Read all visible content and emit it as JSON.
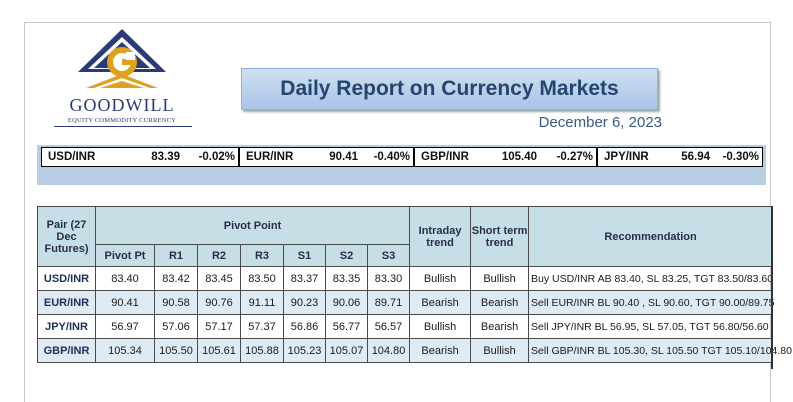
{
  "logo": {
    "name": "GOODWILL",
    "tagline": "EQUITY COMMODITY CURRENCY",
    "colors": {
      "navy": "#2b3a78",
      "gold": "#e0a020"
    }
  },
  "report": {
    "title": "Daily Report on Currency Markets",
    "date": "December 6, 2023"
  },
  "ticker": [
    {
      "pair": "USD/INR",
      "price": "83.39",
      "change": "-0.02%"
    },
    {
      "pair": "EUR/INR",
      "price": "90.41",
      "change": "-0.40%"
    },
    {
      "pair": "GBP/INR",
      "price": "105.40",
      "change": "-0.27%"
    },
    {
      "pair": "JPY/INR",
      "price": "56.94",
      "change": "-0.30%"
    }
  ],
  "table": {
    "headers": {
      "pair": "Pair (27 Dec Futures)",
      "pivot_group": "Pivot Point",
      "intraday": "Intraday trend",
      "short_term": "Short term trend",
      "recommendation": "Recommendation",
      "sub": [
        "Pivot Pt",
        "R1",
        "R2",
        "R3",
        "S1",
        "S2",
        "S3"
      ]
    },
    "rows": [
      {
        "pair": "USD/INR",
        "pivot": "83.40",
        "r1": "83.42",
        "r2": "83.45",
        "r3": "83.50",
        "s1": "83.37",
        "s2": "83.35",
        "s3": "83.30",
        "intraday": "Bullish",
        "short_term": "Bullish",
        "recommendation": "Buy USD/INR AB 83.40, SL 83.25, TGT 83.50/83.60"
      },
      {
        "pair": "EUR/INR",
        "pivot": "90.41",
        "r1": "90.58",
        "r2": "90.76",
        "r3": "91.11",
        "s1": "90.23",
        "s2": "90.06",
        "s3": "89.71",
        "intraday": "Bearish",
        "short_term": "Bearish",
        "recommendation": "Sell EUR/INR BL 90.40 , SL 90.60, TGT 90.00/89.75"
      },
      {
        "pair": "JPY/INR",
        "pivot": "56.97",
        "r1": "57.06",
        "r2": "57.17",
        "r3": "57.37",
        "s1": "56.86",
        "s2": "56.77",
        "s3": "56.57",
        "intraday": "Bullish",
        "short_term": "Bearish",
        "recommendation": "Sell JPY/INR BL 56.95, SL 57.05, TGT 56.80/56.60"
      },
      {
        "pair": "GBP/INR",
        "pivot": "105.34",
        "r1": "105.50",
        "r2": "105.61",
        "r3": "105.88",
        "s1": "105.23",
        "s2": "105.07",
        "s3": "104.80",
        "intraday": "Bearish",
        "short_term": "Bullish",
        "recommendation": "Sell GBP/INR BL 105.30, SL 105.50 TGT 105.10/104.80"
      }
    ]
  }
}
